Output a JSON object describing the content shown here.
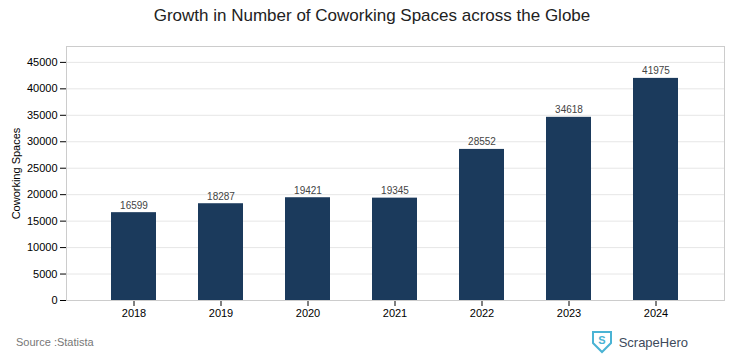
{
  "chart_data": {
    "type": "bar",
    "title": "Growth in Number of Coworking Spaces across the Globe",
    "ylabel": "Coworking Spaces",
    "categories": [
      "2018",
      "2019",
      "2020",
      "2021",
      "2022",
      "2023",
      "2024"
    ],
    "values": [
      16599,
      18287,
      19421,
      19345,
      28552,
      34618,
      41975
    ],
    "color": "#1b3a5c",
    "ylim": [
      0,
      48000
    ],
    "yticks": [
      0,
      5000,
      10000,
      15000,
      20000,
      25000,
      30000,
      35000,
      40000,
      45000
    ],
    "grid": true,
    "data_labels": true,
    "annotations": [
      "Source :Statista",
      "S",
      "ScrapeHero"
    ]
  }
}
